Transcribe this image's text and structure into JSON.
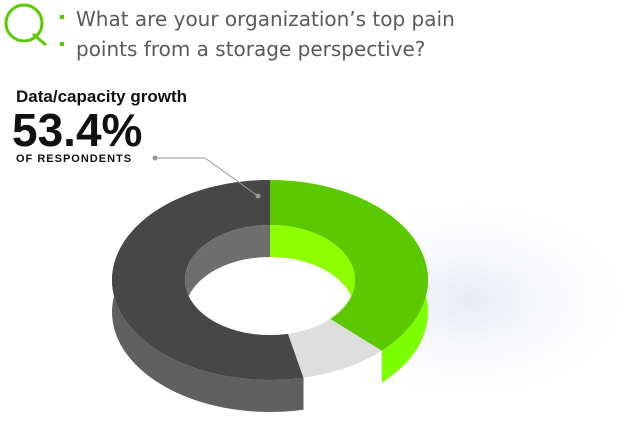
{
  "chart_data": {
    "type": "donut",
    "title": "What are your organization’s top pain points from a storage perspective?",
    "categories": [
      "Data/capacity growth",
      null,
      null
    ],
    "values": [
      53.4,
      37.5,
      9.1
    ],
    "value_labels": [
      "53.4%",
      null,
      null
    ],
    "annotation": "OF RESPONDENTS",
    "colors": [
      "#474747",
      "#5cc800",
      "#dedede"
    ]
  }
}
